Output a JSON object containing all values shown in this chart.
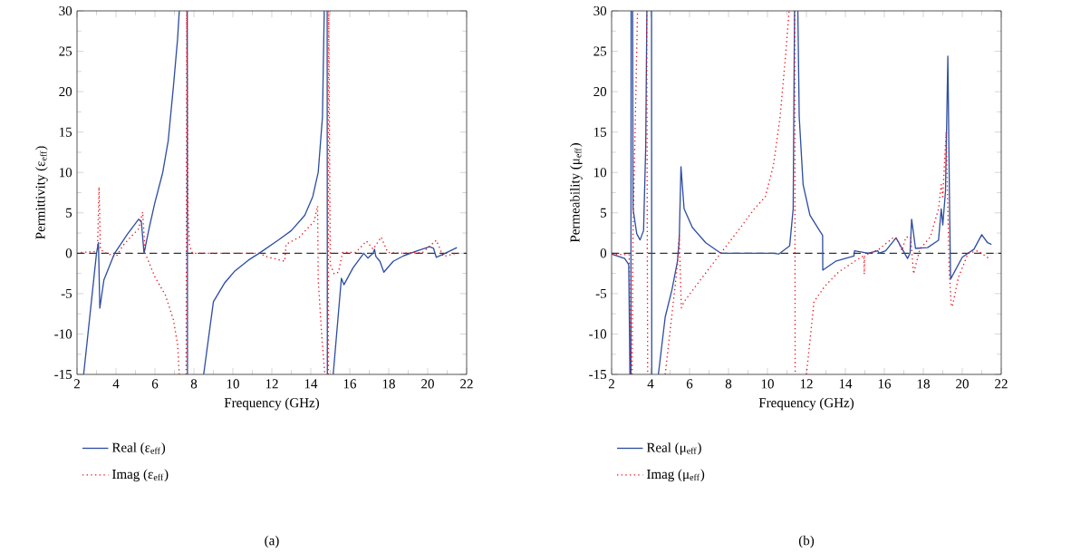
{
  "chart_data": [
    {
      "type": "line",
      "xlabel": "Frequency (GHz)",
      "ylabel": "Permittivity (ε$_{eff}$)",
      "xlim": [
        2,
        22
      ],
      "ylim": [
        -15,
        30
      ],
      "xticks": [
        2,
        4,
        6,
        8,
        10,
        12,
        14,
        16,
        18,
        20,
        22
      ],
      "yticks": [
        -15,
        -10,
        -5,
        0,
        5,
        10,
        15,
        20,
        25,
        30
      ],
      "legend": "bottom",
      "annotations": [
        "(a)"
      ],
      "ref_lines": [
        {
          "axis": "y",
          "value": 0,
          "color": "#000000",
          "line_style": "dashed"
        }
      ],
      "series": [
        {
          "name": "Real (ε$_{eff}$)",
          "color": "#2f4fa2",
          "line_style": "solid",
          "x": [
            2.34,
            3.0,
            3.1,
            3.17,
            3.38,
            3.93,
            4.6,
            5.16,
            5.3,
            5.44,
            5.71,
            5.99,
            6.4,
            6.68,
            6.95,
            7.16,
            7.25,
            7.5,
            7.66,
            7.67,
            8.0,
            8.5,
            9.0,
            9.57,
            10.1,
            10.8,
            11.35,
            12.32,
            13.0,
            13.69,
            14.1,
            14.38,
            14.6,
            14.69,
            14.77,
            14.84,
            14.85,
            15.0,
            15.15,
            15.57,
            15.7,
            16.17,
            16.72,
            16.93,
            17.2,
            17.27,
            17.34,
            17.55,
            17.75,
            18.23,
            18.78,
            19.47,
            20.1,
            20.3,
            20.44,
            20.9,
            21.5
          ],
          "values": [
            -15,
            0,
            1.3,
            -6.8,
            -3.3,
            0,
            2.4,
            4.2,
            3.95,
            0,
            3.2,
            6.2,
            10,
            13.9,
            20.7,
            26.5,
            30,
            null,
            30,
            -15,
            null,
            -15,
            -6,
            -3.7,
            -2.2,
            -0.85,
            0,
            1.6,
            2.8,
            4.7,
            7.0,
            10,
            16.9,
            30,
            null,
            30,
            -15,
            null,
            -15,
            -3.1,
            -3.9,
            -1.8,
            0,
            -0.6,
            0,
            0.5,
            -0.4,
            -1,
            -2.35,
            -1,
            -0.3,
            0.3,
            0.8,
            0.6,
            -0.5,
            0,
            0.7
          ]
        },
        {
          "name": "Imag (ε$_{eff}$)",
          "color": "#e8141c",
          "line_style": "dotted",
          "x": [
            2.2,
            2.9,
            3.05,
            3.13,
            3.2,
            3.4,
            4.0,
            4.34,
            4.75,
            5.16,
            5.37,
            5.5,
            5.99,
            6.54,
            6.95,
            7.16,
            7.25,
            7.4,
            7.6,
            7.63,
            7.7,
            7.78,
            7.92,
            11.35,
            11.76,
            12.66,
            12.73,
            13.42,
            14.17,
            14.35,
            14.38,
            14.55,
            14.72,
            14.8,
            14.9,
            14.92,
            15.0,
            15.2,
            15.42,
            15.63,
            16.3,
            16.86,
            17.2,
            17.61,
            17.95,
            18.64,
            19.74,
            20.44,
            20.8,
            21.5
          ],
          "values": [
            0.1,
            0.2,
            0.5,
            8.2,
            0.5,
            0.1,
            -0.45,
            0.9,
            2.0,
            3.0,
            5.1,
            0,
            -2.9,
            -5.2,
            -8.25,
            -11.3,
            -15,
            null,
            -15,
            30,
            5,
            0.9,
            0,
            0,
            -0.45,
            -1.0,
            1.1,
            2.0,
            3.95,
            5.85,
            -3.3,
            -9.8,
            -15,
            null,
            -15,
            30,
            -1.4,
            -2.55,
            -2.35,
            0.1,
            0.1,
            1.5,
            0.5,
            2.0,
            0.1,
            0,
            0.1,
            1.6,
            -0.4,
            0
          ]
        }
      ]
    },
    {
      "type": "line",
      "xlabel": "Frequency (GHz)",
      "ylabel": "Permeability (μ$_{eff}$)",
      "xlim": [
        2,
        22
      ],
      "ylim": [
        -15,
        30
      ],
      "xticks": [
        2,
        4,
        6,
        8,
        10,
        12,
        14,
        16,
        18,
        20,
        22
      ],
      "yticks": [
        -15,
        -10,
        -5,
        0,
        5,
        10,
        15,
        20,
        25,
        30
      ],
      "legend": "bottom",
      "annotations": [
        "(b)"
      ],
      "ref_lines": [
        {
          "axis": "y",
          "value": 0,
          "color": "#000000",
          "line_style": "dashed"
        }
      ],
      "series": [
        {
          "name": "Real (μ$_{eff}$)",
          "color": "#2f4fa2",
          "line_style": "solid",
          "x": [
            2.0,
            2.67,
            2.88,
            2.94,
            2.97,
            2.99,
            3.0,
            3.05,
            3.08,
            3.1,
            3.29,
            3.46,
            3.64,
            3.75,
            3.81,
            3.95,
            4.05,
            4.06,
            4.2,
            4.4,
            4.75,
            5.1,
            5.38,
            5.47,
            5.56,
            5.72,
            6.14,
            6.83,
            7.6,
            10.3,
            10.58,
            11.14,
            11.32,
            11.39,
            11.48,
            11.56,
            11.63,
            11.83,
            12.18,
            12.83,
            12.84,
            13.5,
            14.44,
            14.47,
            15.17,
            15.67,
            15.72,
            16.07,
            16.6,
            17.19,
            17.32,
            17.4,
            17.6,
            18.22,
            18.78,
            18.92,
            19.0,
            19.14,
            19.26,
            19.35,
            19.4,
            20.0,
            20.6,
            21.0,
            21.3,
            21.5
          ],
          "values": [
            -0.1,
            -0.65,
            -1.4,
            -15,
            null,
            -15,
            30,
            null,
            30,
            5.5,
            2.4,
            1.65,
            2.8,
            13.1,
            30,
            null,
            30,
            -15,
            null,
            -15,
            -7.9,
            -4.5,
            -1,
            1.65,
            10.7,
            5.5,
            3.2,
            1.3,
            0,
            0,
            -0.1,
            0.9,
            5.5,
            30,
            null,
            30,
            16.9,
            8.5,
            4.7,
            2.2,
            -2.1,
            -1,
            -0.35,
            0.3,
            0,
            0.3,
            0,
            0.3,
            1.9,
            -0.65,
            0,
            4.2,
            0.6,
            0.7,
            1.6,
            5.5,
            3.5,
            7.7,
            24.4,
            5.5,
            -3.2,
            -0.5,
            0.5,
            2.3,
            1.3,
            1.1
          ]
        },
        {
          "name": "Imag (μ$_{eff}$)",
          "color": "#e8141c",
          "line_style": "dotted",
          "x": [
            2.0,
            2.9,
            3.0,
            3.03,
            3.05,
            3.1,
            3.22,
            3.33,
            3.6,
            3.8,
            3.85,
            4.3,
            4.75,
            5.17,
            5.38,
            5.47,
            5.58,
            5.72,
            6.56,
            7.6,
            8.5,
            9.33,
            9.89,
            10.3,
            10.65,
            10.93,
            11.11,
            11.3,
            11.4,
            11.42,
            11.7,
            12.0,
            12.39,
            12.94,
            13.64,
            14.47,
            14.95,
            14.97,
            14.99,
            15.72,
            16.5,
            16.7,
            16.9,
            17.11,
            17.35,
            17.5,
            17.82,
            18.36,
            18.78,
            18.92,
            19.0,
            19.17,
            19.33,
            19.44,
            19.5,
            19.8,
            20.3,
            20.8,
            21.4
          ],
          "values": [
            -0.1,
            -0.2,
            -15,
            null,
            -15,
            2.8,
            16.9,
            30,
            null,
            30,
            -15,
            null,
            -15,
            -6,
            -1.4,
            2.2,
            -6.75,
            -6,
            -3.3,
            0,
            2.8,
            5.5,
            7.0,
            10.8,
            16.9,
            24.5,
            30,
            null,
            30,
            -15,
            null,
            -15,
            -6,
            -4.1,
            -2.35,
            -1,
            -0.3,
            -2.6,
            -0.3,
            0.5,
            2.0,
            1.6,
            0.3,
            2.0,
            2.0,
            -2.55,
            0.5,
            2.0,
            5.5,
            8.5,
            7,
            15,
            -2.2,
            -6.6,
            -6.5,
            -3,
            0,
            0.3,
            -0.7
          ]
        }
      ]
    }
  ]
}
